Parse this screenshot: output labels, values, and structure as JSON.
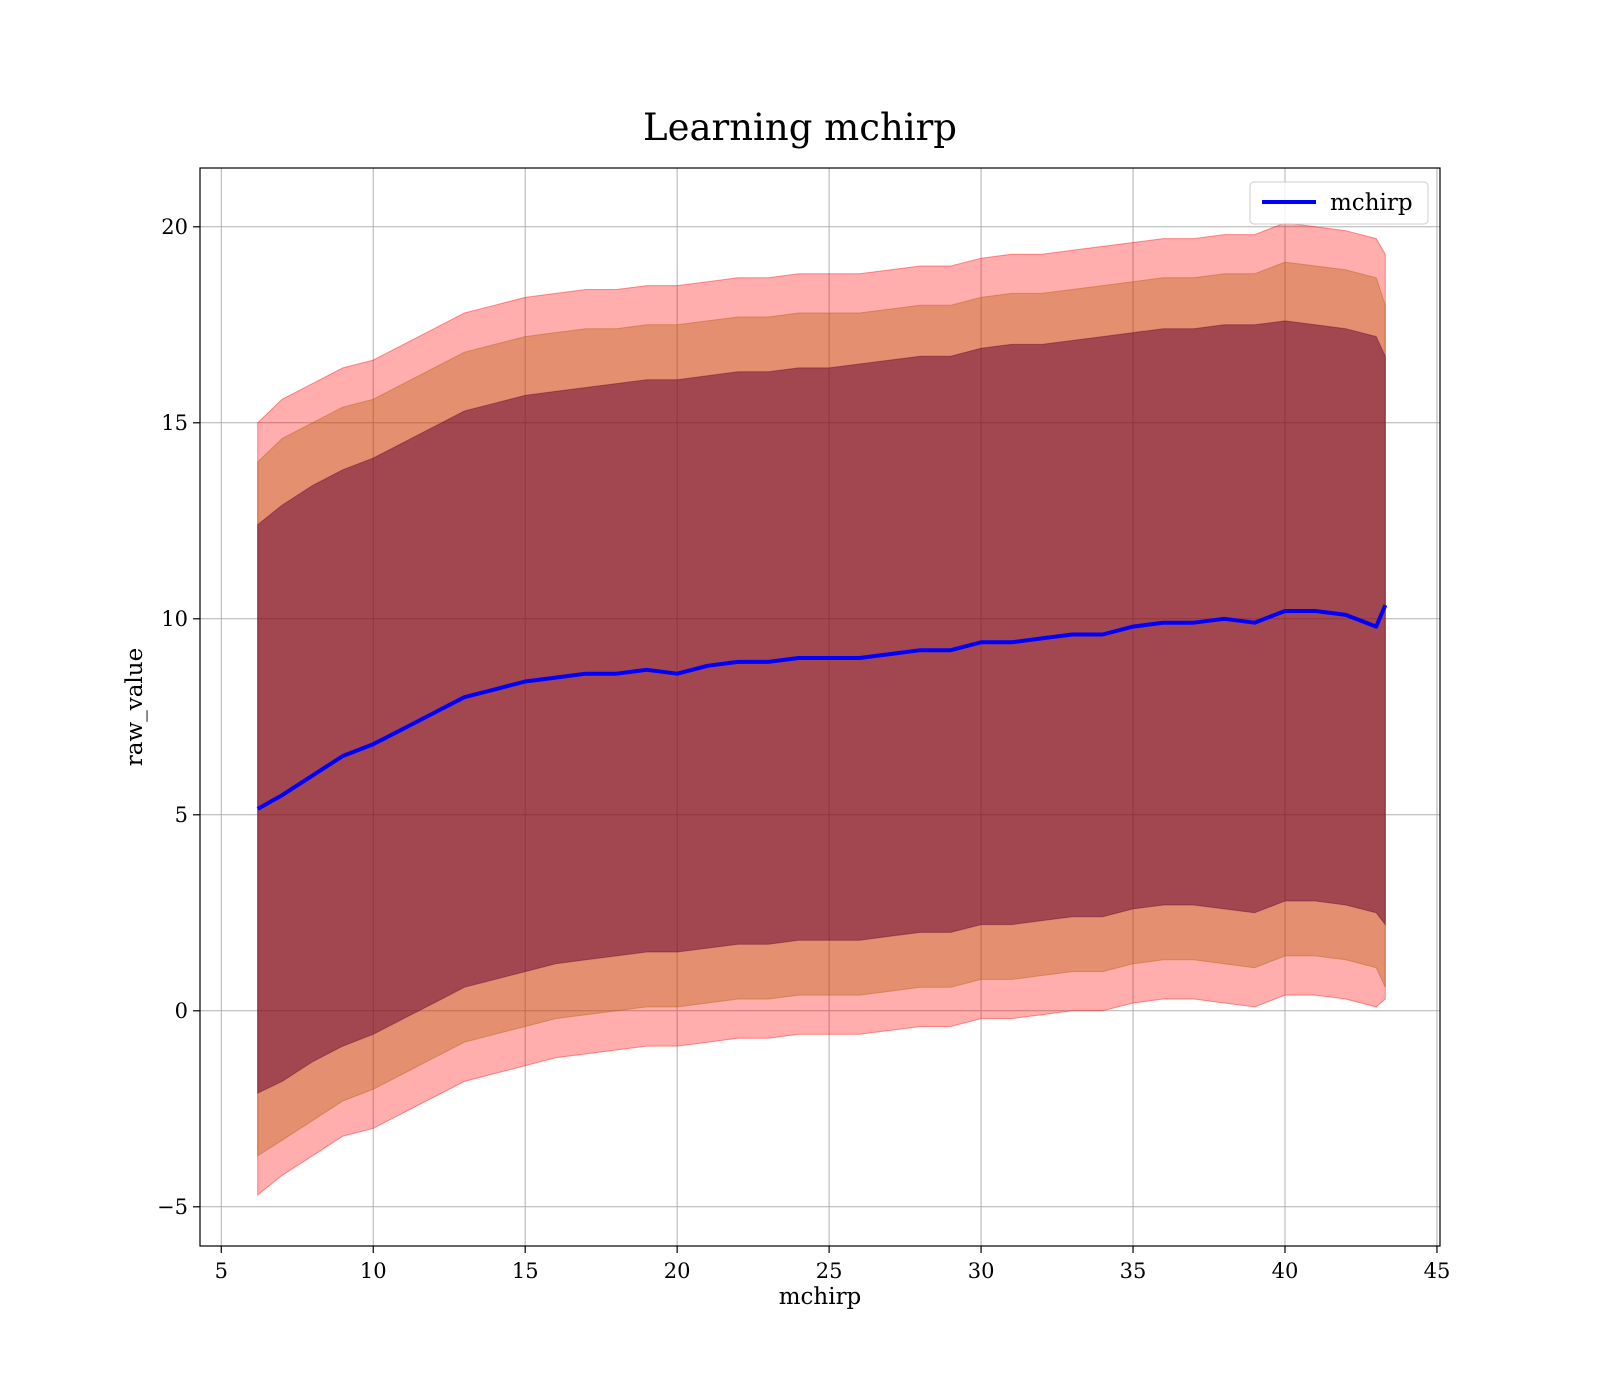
{
  "chart_data": {
    "type": "line",
    "title": "Learning mchirp",
    "xlabel": "mchirp",
    "ylabel": "raw_value",
    "xlim": [
      4.3,
      45.1
    ],
    "ylim": [
      -6,
      21.5
    ],
    "xticks": [
      "5",
      "10",
      "15",
      "20",
      "25",
      "30",
      "35",
      "40",
      "45"
    ],
    "yticks": [
      "−5",
      "0",
      "5",
      "10",
      "15",
      "20"
    ],
    "grid": true,
    "legend": {
      "position": "top-right",
      "entries": [
        "mchirp"
      ]
    },
    "x": [
      6.2,
      7,
      8,
      9,
      10,
      11,
      12,
      13,
      14,
      15,
      16,
      17,
      18,
      19,
      20,
      21,
      22,
      23,
      24,
      25,
      26,
      27,
      28,
      29,
      30,
      31,
      32,
      33,
      34,
      35,
      36,
      37,
      38,
      39,
      40,
      41,
      42,
      43,
      43.3
    ],
    "series": [
      {
        "name": "mchirp",
        "color": "#0000ff",
        "values": [
          5.15,
          5.5,
          6.0,
          6.5,
          6.8,
          7.2,
          7.6,
          8.0,
          8.2,
          8.4,
          8.5,
          8.6,
          8.6,
          8.7,
          8.6,
          8.8,
          8.9,
          8.9,
          9.0,
          9.0,
          9.0,
          9.1,
          9.2,
          9.2,
          9.4,
          9.4,
          9.5,
          9.6,
          9.6,
          9.8,
          9.9,
          9.9,
          10.0,
          9.9,
          10.2,
          10.2,
          10.1,
          9.8,
          10.35
        ]
      }
    ],
    "bands": [
      {
        "color": "#ff0000",
        "opacity": 0.32,
        "lower": [
          -4.7,
          -4.2,
          -3.7,
          -3.2,
          -3.0,
          -2.6,
          -2.2,
          -1.8,
          -1.6,
          -1.4,
          -1.2,
          -1.1,
          -1.0,
          -0.9,
          -0.9,
          -0.8,
          -0.7,
          -0.7,
          -0.6,
          -0.6,
          -0.6,
          -0.5,
          -0.4,
          -0.4,
          -0.2,
          -0.2,
          -0.1,
          0.0,
          0.0,
          0.2,
          0.3,
          0.3,
          0.2,
          0.1,
          0.4,
          0.4,
          0.3,
          0.1,
          0.3
        ],
        "upper": [
          15.0,
          15.6,
          16.0,
          16.4,
          16.6,
          17.0,
          17.4,
          17.8,
          18.0,
          18.2,
          18.3,
          18.4,
          18.4,
          18.5,
          18.5,
          18.6,
          18.7,
          18.7,
          18.8,
          18.8,
          18.8,
          18.9,
          19.0,
          19.0,
          19.2,
          19.3,
          19.3,
          19.4,
          19.5,
          19.6,
          19.7,
          19.7,
          19.8,
          19.8,
          20.1,
          20.0,
          19.9,
          19.7,
          19.3
        ]
      },
      {
        "color": "#b35a00",
        "opacity": 0.35,
        "lower": [
          -3.7,
          -3.3,
          -2.8,
          -2.3,
          -2.0,
          -1.6,
          -1.2,
          -0.8,
          -0.6,
          -0.4,
          -0.2,
          -0.1,
          0.0,
          0.1,
          0.1,
          0.2,
          0.3,
          0.3,
          0.4,
          0.4,
          0.4,
          0.5,
          0.6,
          0.6,
          0.8,
          0.8,
          0.9,
          1.0,
          1.0,
          1.2,
          1.3,
          1.3,
          1.2,
          1.1,
          1.4,
          1.4,
          1.3,
          1.1,
          0.6
        ],
        "upper": [
          14.0,
          14.6,
          15.0,
          15.4,
          15.6,
          16.0,
          16.4,
          16.8,
          17.0,
          17.2,
          17.3,
          17.4,
          17.4,
          17.5,
          17.5,
          17.6,
          17.7,
          17.7,
          17.8,
          17.8,
          17.8,
          17.9,
          18.0,
          18.0,
          18.2,
          18.3,
          18.3,
          18.4,
          18.5,
          18.6,
          18.7,
          18.7,
          18.8,
          18.8,
          19.1,
          19.0,
          18.9,
          18.7,
          18.0
        ]
      },
      {
        "color": "#600030",
        "opacity": 0.5,
        "lower": [
          -2.1,
          -1.8,
          -1.3,
          -0.9,
          -0.6,
          -0.2,
          0.2,
          0.6,
          0.8,
          1.0,
          1.2,
          1.3,
          1.4,
          1.5,
          1.5,
          1.6,
          1.7,
          1.7,
          1.8,
          1.8,
          1.8,
          1.9,
          2.0,
          2.0,
          2.2,
          2.2,
          2.3,
          2.4,
          2.4,
          2.6,
          2.7,
          2.7,
          2.6,
          2.5,
          2.8,
          2.8,
          2.7,
          2.5,
          2.2
        ],
        "upper": [
          12.4,
          12.9,
          13.4,
          13.8,
          14.1,
          14.5,
          14.9,
          15.3,
          15.5,
          15.7,
          15.8,
          15.9,
          16.0,
          16.1,
          16.1,
          16.2,
          16.3,
          16.3,
          16.4,
          16.4,
          16.5,
          16.6,
          16.7,
          16.7,
          16.9,
          17.0,
          17.0,
          17.1,
          17.2,
          17.3,
          17.4,
          17.4,
          17.5,
          17.5,
          17.6,
          17.5,
          17.4,
          17.2,
          16.7
        ]
      }
    ]
  }
}
